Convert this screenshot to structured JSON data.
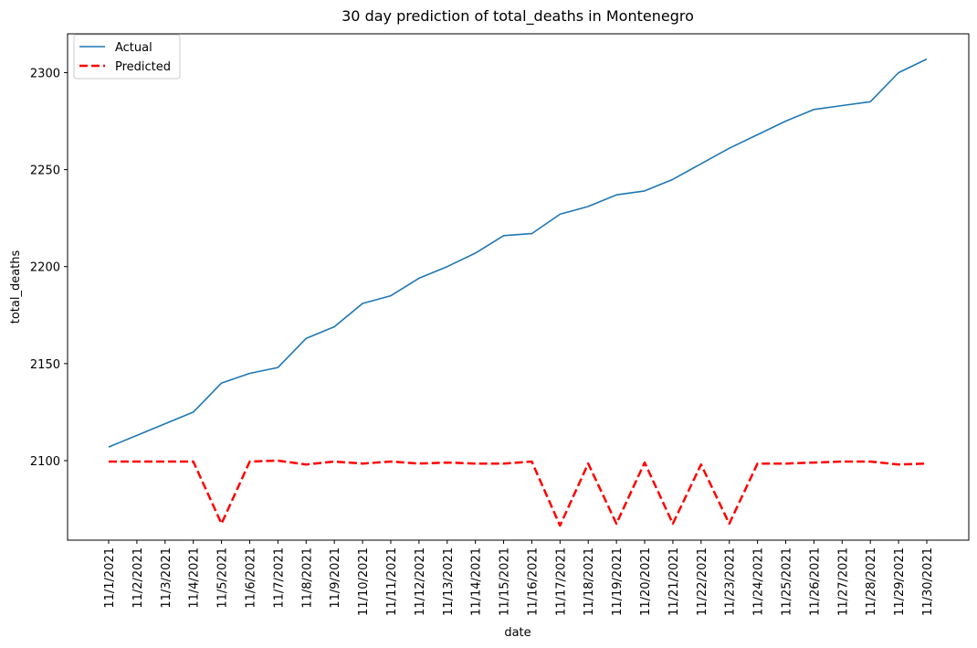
{
  "chart_data": {
    "type": "line",
    "title": "30 day prediction of total_deaths in Montenegro",
    "xlabel": "date",
    "ylabel": "total_deaths",
    "categories": [
      "11/1/2021",
      "11/2/2021",
      "11/3/2021",
      "11/4/2021",
      "11/5/2021",
      "11/6/2021",
      "11/7/2021",
      "11/8/2021",
      "11/9/2021",
      "11/10/2021",
      "11/11/2021",
      "11/12/2021",
      "11/13/2021",
      "11/14/2021",
      "11/15/2021",
      "11/16/2021",
      "11/17/2021",
      "11/18/2021",
      "11/19/2021",
      "11/20/2021",
      "11/21/2021",
      "11/22/2021",
      "11/23/2021",
      "11/24/2021",
      "11/25/2021",
      "11/26/2021",
      "11/27/2021",
      "11/28/2021",
      "11/29/2021",
      "11/30/2021"
    ],
    "ylim": [
      2059,
      2320
    ],
    "yticks": [
      2100,
      2150,
      2200,
      2250,
      2300
    ],
    "legend_position": "top-left",
    "grid": false,
    "series": [
      {
        "name": "Actual",
        "color": "#1f77b4",
        "style": "solid",
        "values": [
          2107,
          2113,
          2119,
          2125,
          2140,
          2145,
          2148,
          2163,
          2169,
          2181,
          2185,
          2194,
          2200,
          2207,
          2216,
          2217,
          2227,
          2231,
          2237,
          2239,
          2245,
          2253,
          2261,
          2268,
          2275,
          2281,
          2283,
          2285,
          2300,
          2307
        ]
      },
      {
        "name": "Predicted",
        "color": "#ff0000",
        "style": "dashed",
        "values": [
          2099.5,
          2099.5,
          2099.5,
          2099.5,
          2067.5,
          2099.5,
          2100,
          2098,
          2099.5,
          2098.5,
          2099.5,
          2098.5,
          2099,
          2098.5,
          2098.5,
          2099.5,
          2066.5,
          2098.5,
          2067.5,
          2099,
          2067.5,
          2098,
          2067.5,
          2098.5,
          2098.5,
          2099,
          2099.5,
          2099.5,
          2098,
          2098.5
        ]
      }
    ]
  }
}
